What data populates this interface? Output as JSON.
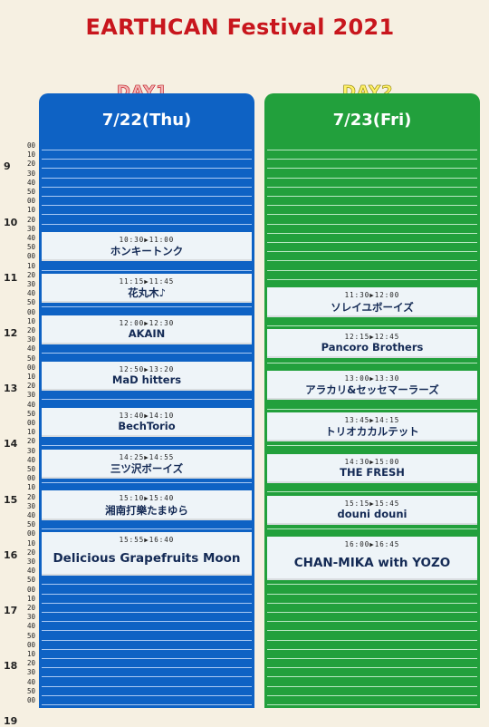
{
  "title": "EARTHCAN Festival 2021",
  "days": [
    {
      "label": "DAY1",
      "date": "7/22(Thu)"
    },
    {
      "label": "DAY2",
      "date": "7/23(Fri)"
    }
  ],
  "timeline": {
    "hours": [
      "9",
      "10",
      "11",
      "12",
      "13",
      "14",
      "15",
      "16",
      "17",
      "18",
      "19"
    ],
    "minutes": [
      "00",
      "10",
      "20",
      "30",
      "40",
      "50"
    ]
  },
  "colors": {
    "day1": "#0e62c4",
    "day2": "#22a03c",
    "title": "#c8161d"
  },
  "day1_slots": [
    {
      "time": "10:30▶11:00",
      "name": "ホンキートンク"
    },
    {
      "time": "11:15▶11:45",
      "name": "花丸木♪"
    },
    {
      "time": "12:00▶12:30",
      "name": "AKAIN"
    },
    {
      "time": "12:50▶13:20",
      "name": "MaD hitters"
    },
    {
      "time": "13:40▶14:10",
      "name": "BechTorio"
    },
    {
      "time": "14:25▶14:55",
      "name": "三ツ沢ボーイズ"
    },
    {
      "time": "15:10▶15:40",
      "name": "湘南打樂たまゆら"
    },
    {
      "time": "15:55▶16:40",
      "name": "Delicious Grapefruits Moon"
    }
  ],
  "day2_slots": [
    {
      "time": "11:30▶12:00",
      "name": "ソレイユボーイズ"
    },
    {
      "time": "12:15▶12:45",
      "name": "Pancoro Brothers"
    },
    {
      "time": "13:00▶13:30",
      "name": "アラカリ&セッセマーラーズ"
    },
    {
      "time": "13:45▶14:15",
      "name": "トリオカカルテット"
    },
    {
      "time": "14:30▶15:00",
      "name": "THE FRESH"
    },
    {
      "time": "15:15▶15:45",
      "name": "douni douni"
    },
    {
      "time": "16:00▶16:45",
      "name": "CHAN-MIKA with YOZO"
    }
  ]
}
